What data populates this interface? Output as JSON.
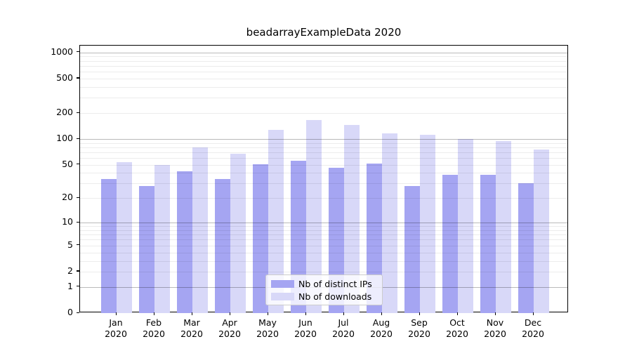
{
  "figure": {
    "background": "#ffffff"
  },
  "chart_data": {
    "type": "bar",
    "title": "beadarrayExampleData 2020",
    "categories": [
      "Jan",
      "Feb",
      "Mar",
      "Apr",
      "May",
      "Jun",
      "Jul",
      "Aug",
      "Sep",
      "Oct",
      "Nov",
      "Dec"
    ],
    "category_year": "2020",
    "series": [
      {
        "name": "Nb of distinct IPs",
        "color": "#a5a5f2",
        "values": [
          34,
          28,
          42,
          34,
          51,
          56,
          46,
          52,
          28,
          38,
          38,
          30
        ]
      },
      {
        "name": "Nb of downloads",
        "color": "#d8d8f8",
        "values": [
          54,
          50,
          80,
          67,
          127,
          166,
          146,
          116,
          112,
          100,
          94,
          75
        ]
      }
    ],
    "xlabel": "",
    "ylabel": "",
    "yscale": "log1p",
    "ylim": [
      0,
      1200
    ],
    "y_ticks": [
      0,
      1,
      2,
      5,
      10,
      20,
      50,
      100,
      200,
      500,
      1000
    ],
    "y_major_gridlines": [
      1,
      10,
      100,
      1000
    ],
    "grid": true,
    "legend_position": "lower center"
  },
  "colors": {
    "grid_major": "#b9b9b9",
    "grid_minor": "#ebebeb",
    "spine": "#000000",
    "text": "#000000"
  }
}
